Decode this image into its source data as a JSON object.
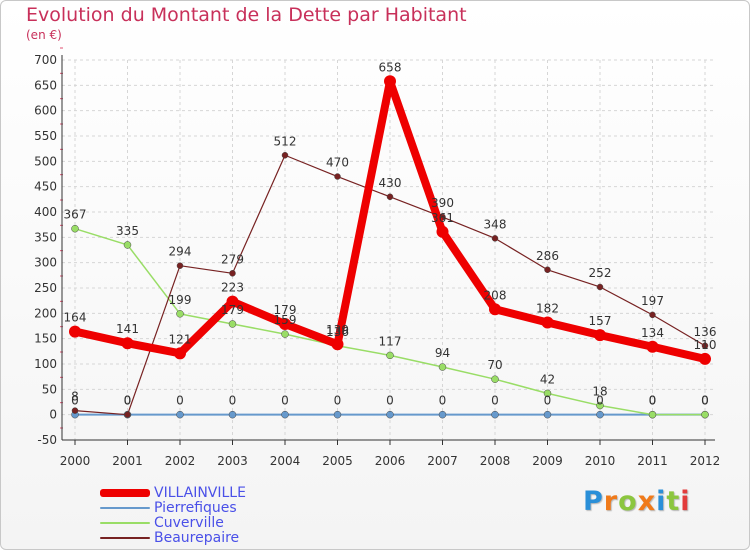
{
  "title": "Evolution du Montant de la Dette par Habitant",
  "unit_label": "(en €)",
  "logo": {
    "text": "Proxiti"
  },
  "chart_data": {
    "type": "line",
    "title": "Evolution du Montant de la Dette par Habitant",
    "ylabel": "(en €)",
    "xlabel": "",
    "ylim": [
      -50,
      700
    ],
    "y_ticks": [
      -50,
      0,
      50,
      100,
      150,
      200,
      250,
      300,
      350,
      400,
      450,
      500,
      550,
      600,
      650,
      700
    ],
    "categories": [
      "2000",
      "2001",
      "2002",
      "2003",
      "2004",
      "2005",
      "2006",
      "2007",
      "2008",
      "2009",
      "2010",
      "2011",
      "2012"
    ],
    "legend_position": "bottom-left",
    "series": [
      {
        "name": "VILLAINVILLE",
        "color": "#ee0000",
        "values": [
          164,
          141,
          121,
          223,
          179,
          139,
          658,
          361,
          208,
          182,
          157,
          134,
          110
        ]
      },
      {
        "name": "Pierrefiques",
        "color": "#6699cc",
        "values": [
          0,
          0,
          0,
          0,
          0,
          0,
          0,
          0,
          0,
          0,
          0,
          0,
          0
        ]
      },
      {
        "name": "Cuverville",
        "color": "#99dd66",
        "values": [
          367,
          335,
          199,
          179,
          159,
          136,
          117,
          94,
          70,
          42,
          18,
          0,
          0
        ]
      },
      {
        "name": "Beaurepaire",
        "color": "#772222",
        "values": [
          8,
          0,
          294,
          279,
          512,
          470,
          430,
          390,
          348,
          286,
          252,
          197,
          136
        ]
      }
    ]
  }
}
